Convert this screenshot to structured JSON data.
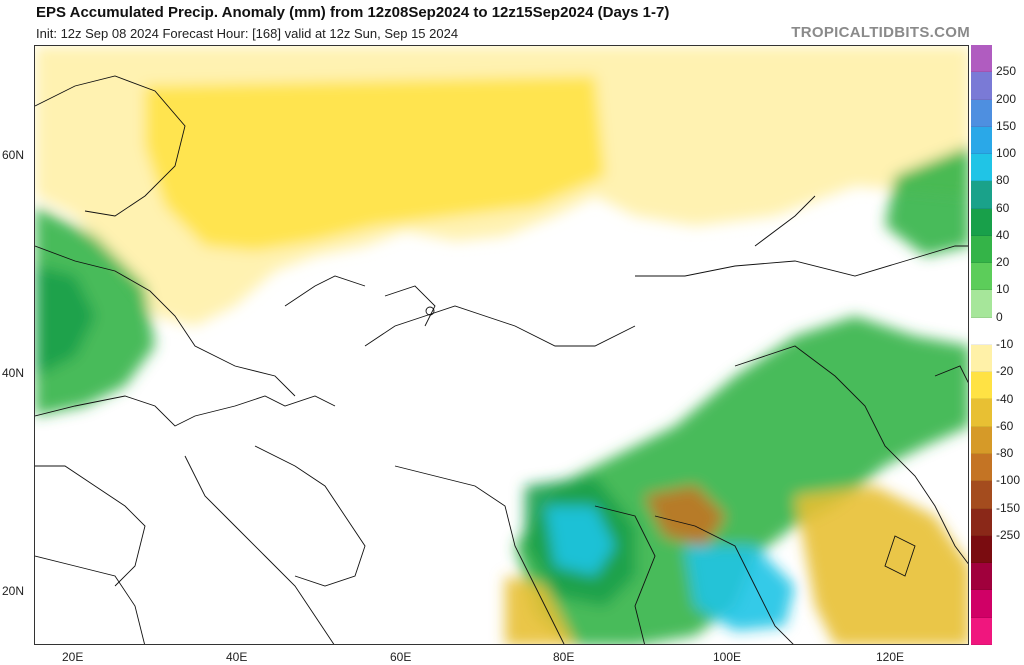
{
  "header": {
    "title": "EPS Accumulated Precip. Anomaly (mm) from 12z08Sep2024 to 12z15Sep2024 (Days 1-7)",
    "subtitle": "Init: 12z Sep 08 2024   Forecast Hour: [168]   valid at 12z Sun, Sep 15 2024",
    "brand": "TROPICALTIDBITS.COM"
  },
  "axes": {
    "lat_labels": [
      "60N",
      "40N",
      "20N"
    ],
    "lon_labels": [
      "20E",
      "40E",
      "60E",
      "80E",
      "100E",
      "120E"
    ]
  },
  "colorbar": {
    "labels": [
      "250",
      "200",
      "150",
      "100",
      "80",
      "60",
      "40",
      "20",
      "10",
      "0",
      "-10",
      "-20",
      "-40",
      "-60",
      "-80",
      "-100",
      "-150",
      "-250"
    ],
    "colors": [
      "#b05cc0",
      "#7a7ad6",
      "#4e8fe0",
      "#2aa8e8",
      "#20c4e6",
      "#1aa28a",
      "#18a04a",
      "#34b448",
      "#5ccd5a",
      "#a6e69a",
      "#ffffff",
      "#fff1a8",
      "#ffe244",
      "#e8c033",
      "#d69a28",
      "#c47424",
      "#a44c1e",
      "#8a2818",
      "#7a0c10",
      "#a0003c",
      "#d00066",
      "#f0167e"
    ]
  },
  "map": {
    "precip_colors": {
      "dry_light": "#fff1a8",
      "dry_mid": "#ffe244",
      "dry_strong": "#e8c033",
      "dry_very": "#c47424",
      "wet_light": "#a6e69a",
      "wet_mid": "#34b448",
      "wet_strong": "#18a04a",
      "wet_very": "#20c4e6"
    }
  }
}
